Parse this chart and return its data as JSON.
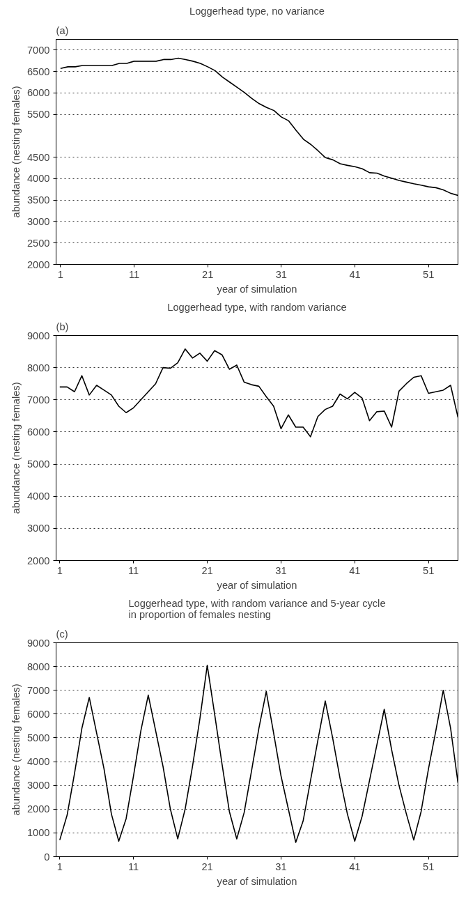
{
  "chart_data": [
    {
      "type": "line",
      "title": "Loggerhead type, no variance",
      "xlabel": "year of simulation",
      "ylabel": "abundance (nesting females)",
      "annotations": [
        "(a)"
      ],
      "x": [
        1,
        2,
        3,
        4,
        5,
        6,
        7,
        8,
        9,
        10,
        11,
        12,
        13,
        14,
        15,
        16,
        17,
        18,
        19,
        20,
        21,
        22,
        23,
        24,
        25,
        26,
        27,
        28,
        29,
        30,
        31,
        32,
        33,
        34,
        35,
        36,
        37,
        38,
        39,
        40,
        41,
        42,
        43,
        44,
        45,
        46,
        47,
        48,
        49,
        50,
        51,
        52,
        53,
        54,
        55
      ],
      "series": [
        {
          "color": "#000000",
          "values": [
            6570,
            6610,
            6610,
            6640,
            6640,
            6640,
            6640,
            6640,
            6690,
            6690,
            6740,
            6740,
            6740,
            6740,
            6780,
            6780,
            6810,
            6780,
            6740,
            6690,
            6610,
            6520,
            6370,
            6250,
            6130,
            6010,
            5870,
            5750,
            5660,
            5590,
            5440,
            5350,
            5130,
            4920,
            4800,
            4650,
            4490,
            4440,
            4350,
            4310,
            4280,
            4230,
            4140,
            4130,
            4060,
            4010,
            3960,
            3920,
            3880,
            3850,
            3810,
            3790,
            3740,
            3660,
            3610
          ]
        }
      ],
      "xlim": [
        0.4,
        55
      ],
      "xticks": [
        1,
        11,
        21,
        31,
        41,
        51
      ],
      "ylim": [
        2000,
        7250
      ],
      "yticks": [
        2000,
        2500,
        3000,
        3500,
        4000,
        4500,
        5500,
        6000,
        6500,
        7000
      ],
      "grid": "y",
      "line_style": "solid"
    },
    {
      "type": "line",
      "title": "Loggerhead type, with random variance",
      "xlabel": "year of simulation",
      "ylabel": "abundance (nesting females)",
      "annotations": [
        "(b)"
      ],
      "x": [
        1,
        2,
        3,
        4,
        5,
        6,
        7,
        8,
        9,
        10,
        11,
        12,
        13,
        14,
        15,
        16,
        17,
        18,
        19,
        20,
        21,
        22,
        23,
        24,
        25,
        26,
        27,
        28,
        29,
        30,
        31,
        32,
        33,
        34,
        35,
        36,
        37,
        38,
        39,
        40,
        41,
        42,
        43,
        44,
        45,
        46,
        47,
        48,
        49,
        50,
        51,
        52,
        53,
        54,
        55
      ],
      "series": [
        {
          "color": "#000000",
          "values": [
            7400,
            7400,
            7250,
            7750,
            7150,
            7450,
            7300,
            7150,
            6800,
            6600,
            6750,
            7000,
            7250,
            7500,
            8000,
            7980,
            8150,
            8580,
            8300,
            8450,
            8200,
            8530,
            8400,
            7950,
            8080,
            7550,
            7470,
            7420,
            7100,
            6800,
            6100,
            6530,
            6150,
            6150,
            5850,
            6480,
            6700,
            6800,
            7180,
            7030,
            7230,
            7050,
            6350,
            6630,
            6650,
            6150,
            7270,
            7500,
            7700,
            7750,
            7200,
            7250,
            7300,
            7450,
            6450
          ]
        }
      ],
      "xlim": [
        0.5,
        55
      ],
      "xticks": [
        1,
        11,
        21,
        31,
        41,
        51
      ],
      "ylim": [
        2000,
        9000
      ],
      "yticks": [
        2000,
        3000,
        4000,
        5000,
        6000,
        7000,
        8000,
        9000
      ],
      "grid": "y",
      "line_style": "solid"
    },
    {
      "type": "line",
      "title": "Loggerhead type, with random variance and 5-year cycle\nin proportion of females nesting",
      "xlabel": "year of simulation",
      "ylabel": "abundance (nesting females)",
      "annotations": [
        "(c)"
      ],
      "x": [
        1,
        2,
        3,
        4,
        5,
        6,
        7,
        8,
        9,
        10,
        11,
        12,
        13,
        14,
        15,
        16,
        17,
        18,
        19,
        20,
        21,
        22,
        23,
        24,
        25,
        26,
        27,
        28,
        29,
        30,
        31,
        32,
        33,
        34,
        35,
        36,
        37,
        38,
        39,
        40,
        41,
        42,
        43,
        44,
        45,
        46,
        47,
        48,
        49,
        50,
        51,
        52,
        53,
        54,
        55
      ],
      "series": [
        {
          "color": "#000000",
          "values": [
            700,
            1750,
            3500,
            5400,
            6700,
            5200,
            3700,
            1800,
            650,
            1600,
            3400,
            5300,
            6800,
            5300,
            3800,
            2000,
            750,
            2000,
            3800,
            5800,
            8050,
            6000,
            3900,
            1900,
            750,
            1850,
            3600,
            5400,
            6950,
            5200,
            3400,
            2000,
            600,
            1500,
            3200,
            4900,
            6550,
            5000,
            3300,
            1800,
            650,
            1700,
            3200,
            4700,
            6200,
            4500,
            3000,
            1800,
            700,
            1900,
            3700,
            5300,
            7000,
            5400,
            3100
          ]
        }
      ],
      "xlim": [
        0.5,
        55
      ],
      "xticks": [
        1,
        11,
        21,
        31,
        41,
        51
      ],
      "ylim": [
        0,
        9000
      ],
      "yticks": [
        0,
        1000,
        2000,
        3000,
        4000,
        5000,
        6000,
        7000,
        8000,
        9000
      ],
      "grid": "y",
      "line_style": "solid"
    }
  ]
}
